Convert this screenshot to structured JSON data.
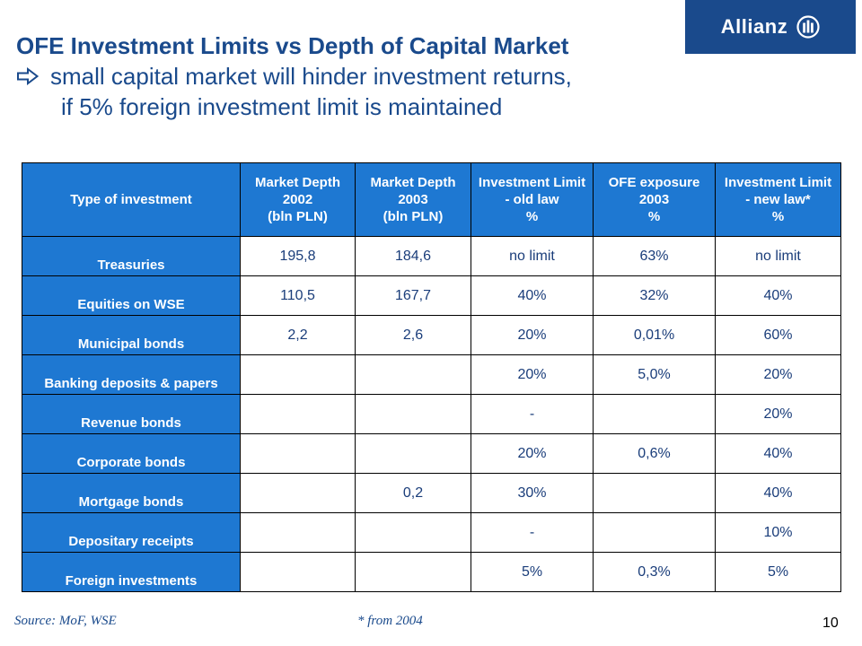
{
  "brand": {
    "logo_text": "Allianz",
    "logo_bg": "#1A4A8C",
    "emblem_icon": "allianz-eagle-emblem-icon"
  },
  "title": {
    "line1": "OFE Investment Limits vs Depth of Capital Market",
    "line2": "small capital market will hinder investment returns,",
    "line3": "if 5% foreign investment limit is maintained",
    "bullet_icon": "outline-right-arrow-icon",
    "color": "#1A4A8C"
  },
  "table": {
    "header_bg": "#1E78D2",
    "headers": [
      {
        "lines": [
          "Type of investment"
        ]
      },
      {
        "lines": [
          "Market Depth",
          "2002",
          "(bln PLN)"
        ]
      },
      {
        "lines": [
          "Market Depth",
          "2003",
          "(bln PLN)"
        ]
      },
      {
        "lines": [
          "Investment Limit",
          "- old law",
          "%"
        ]
      },
      {
        "lines": [
          "OFE exposure",
          "2003",
          "%"
        ]
      },
      {
        "lines": [
          "Investment Limit",
          "- new law*",
          "%"
        ]
      }
    ],
    "rows": [
      {
        "type": "Treasuries",
        "depth2002": "195,8",
        "depth2003": "184,6",
        "old_limit": "no limit",
        "exposure2003": "63%",
        "new_limit": "no limit"
      },
      {
        "type": "Equities on WSE",
        "depth2002": "110,5",
        "depth2003": "167,7",
        "old_limit": "40%",
        "exposure2003": "32%",
        "new_limit": "40%"
      },
      {
        "type": "Municipal bonds",
        "depth2002": "2,2",
        "depth2003": "2,6",
        "old_limit": "20%",
        "exposure2003": "0,01%",
        "new_limit": "60%"
      },
      {
        "type": "Banking deposits & papers",
        "depth2002": "",
        "depth2003": "",
        "old_limit": "20%",
        "exposure2003": "5,0%",
        "new_limit": "20%"
      },
      {
        "type": "Revenue bonds",
        "depth2002": "",
        "depth2003": "",
        "old_limit": "-",
        "exposure2003": "",
        "new_limit": "20%"
      },
      {
        "type": "Corporate bonds",
        "depth2002": "",
        "depth2003": "",
        "old_limit": "20%",
        "exposure2003": "0,6%",
        "new_limit": "40%"
      },
      {
        "type": "Mortgage bonds",
        "depth2002": "",
        "depth2003": "0,2",
        "old_limit": "30%",
        "exposure2003": "",
        "new_limit": "40%"
      },
      {
        "type": "Depositary receipts",
        "depth2002": "",
        "depth2003": "",
        "old_limit": "-",
        "exposure2003": "",
        "new_limit": "10%"
      },
      {
        "type": "Foreign investments",
        "depth2002": "",
        "depth2003": "",
        "old_limit": "5%",
        "exposure2003": "0,3%",
        "new_limit": "5%"
      }
    ]
  },
  "footer": {
    "source": "Source: MoF, WSE",
    "note": "* from 2004",
    "page_number": "10"
  }
}
